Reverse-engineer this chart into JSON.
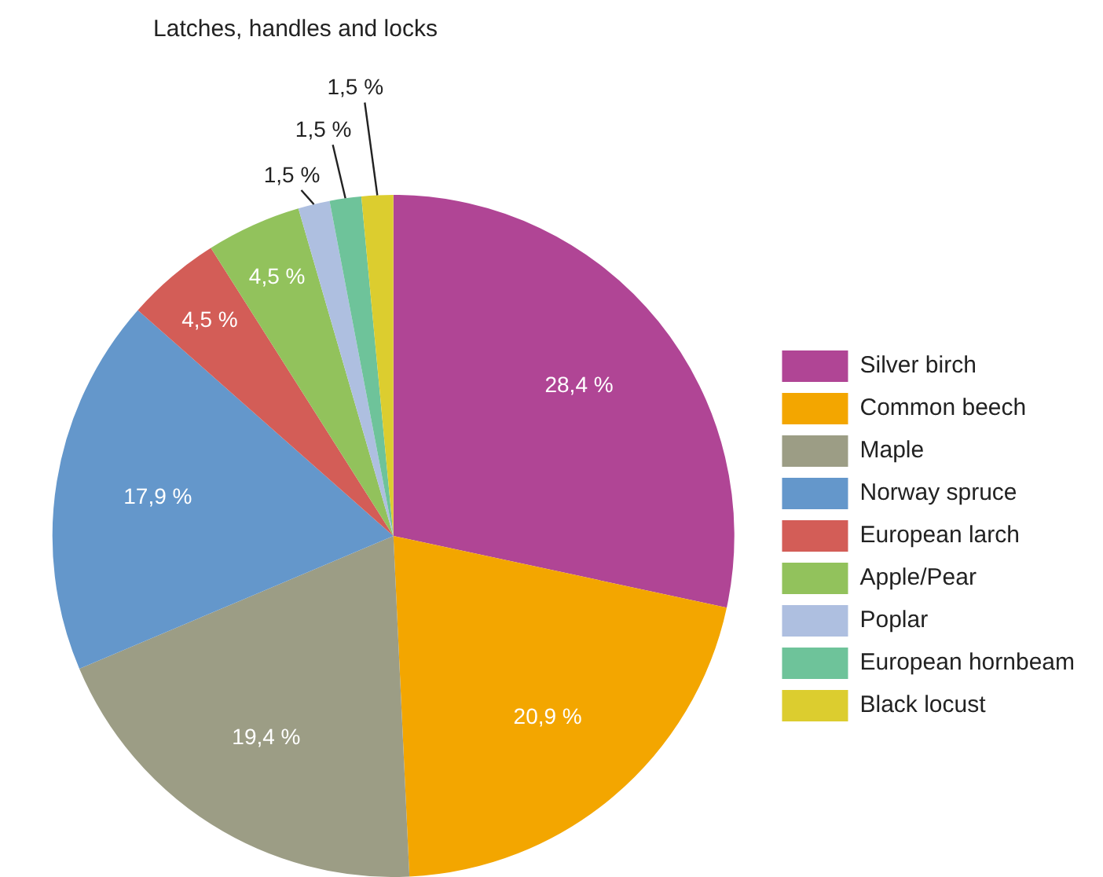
{
  "chart_data": {
    "type": "pie",
    "title": "Latches, handles and locks",
    "categories": [
      "Silver birch",
      "Common beech",
      "Maple",
      "Norway spruce",
      "European larch",
      "Apple/Pear",
      "Poplar",
      "European hornbeam",
      "Black locust"
    ],
    "values": [
      28.4,
      20.9,
      19.4,
      17.9,
      4.5,
      4.5,
      1.5,
      1.5,
      1.5
    ],
    "value_labels": [
      "28,4 %",
      "20,9 %",
      "19,4 %",
      "17,9 %",
      "4,5 %",
      "4,5 %",
      "1,5 %",
      "1,5 %",
      "1,5 %"
    ],
    "colors": [
      "#b04595",
      "#f3a600",
      "#9c9d85",
      "#6497cb",
      "#d35d57",
      "#92c25c",
      "#aebfe0",
      "#6ec39a",
      "#dccd2f"
    ],
    "legend": "right"
  }
}
